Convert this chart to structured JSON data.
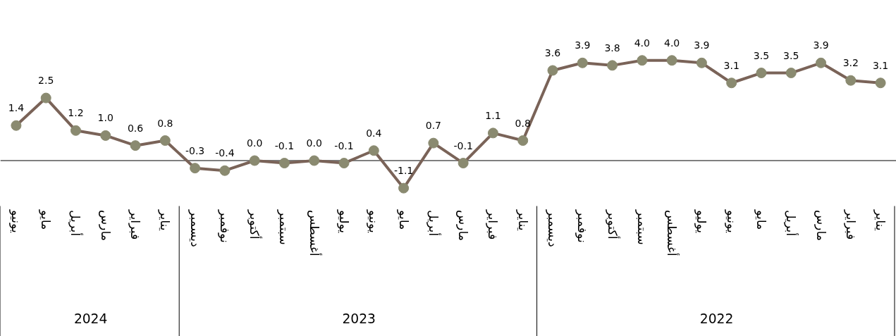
{
  "chart_data": {
    "type": "line",
    "categories": [
      "يونيو",
      "مايو",
      "أبريل",
      "مارس",
      "فبراير",
      "يناير",
      "ديسمبر",
      "نوفمبر",
      "أكتوبر",
      "سبتمبر",
      "أغسطس",
      "يوليو",
      "يونيو",
      "مايو",
      "أبريل",
      "مارس",
      "فبراير",
      "يناير",
      "ديسمبر",
      "نوفمبر",
      "أكتوبر",
      "سبتمبر",
      "أغسطس",
      "يوليو",
      "يونيو",
      "مايو",
      "أبريل",
      "مارس",
      "فبراير",
      "يناير"
    ],
    "series": [
      {
        "color": "#7a6358",
        "value_labels": [
          "1.4",
          "2.5",
          "1.2",
          "1.0",
          "0.6",
          "0.8",
          "-0.3",
          "-0.4",
          "0.0",
          "-0.1",
          "0.0",
          "-0.1",
          "0.4",
          "-1.1",
          "0.7",
          "-0.1",
          "1.1",
          "0.8",
          "3.6",
          "3.9",
          "3.8",
          "4.0",
          "4.0",
          "3.9",
          "3.1",
          "3.5",
          "3.5",
          "3.9",
          "3.2",
          "3.1"
        ],
        "values": [
          1.4,
          2.5,
          1.2,
          1.0,
          0.6,
          0.8,
          -0.3,
          -0.4,
          0.0,
          -0.1,
          0.0,
          -0.1,
          0.4,
          -1.1,
          0.7,
          -0.1,
          1.1,
          0.8,
          3.6,
          3.9,
          3.8,
          4.0,
          4.0,
          3.9,
          3.1,
          3.5,
          3.5,
          3.9,
          3.2,
          3.1
        ]
      }
    ],
    "marker": "circle",
    "ref_lines": [
      {
        "axis": "y",
        "value": 0,
        "color": "#000000"
      }
    ],
    "annotations": [
      "2024",
      "2023",
      "2022"
    ]
  }
}
